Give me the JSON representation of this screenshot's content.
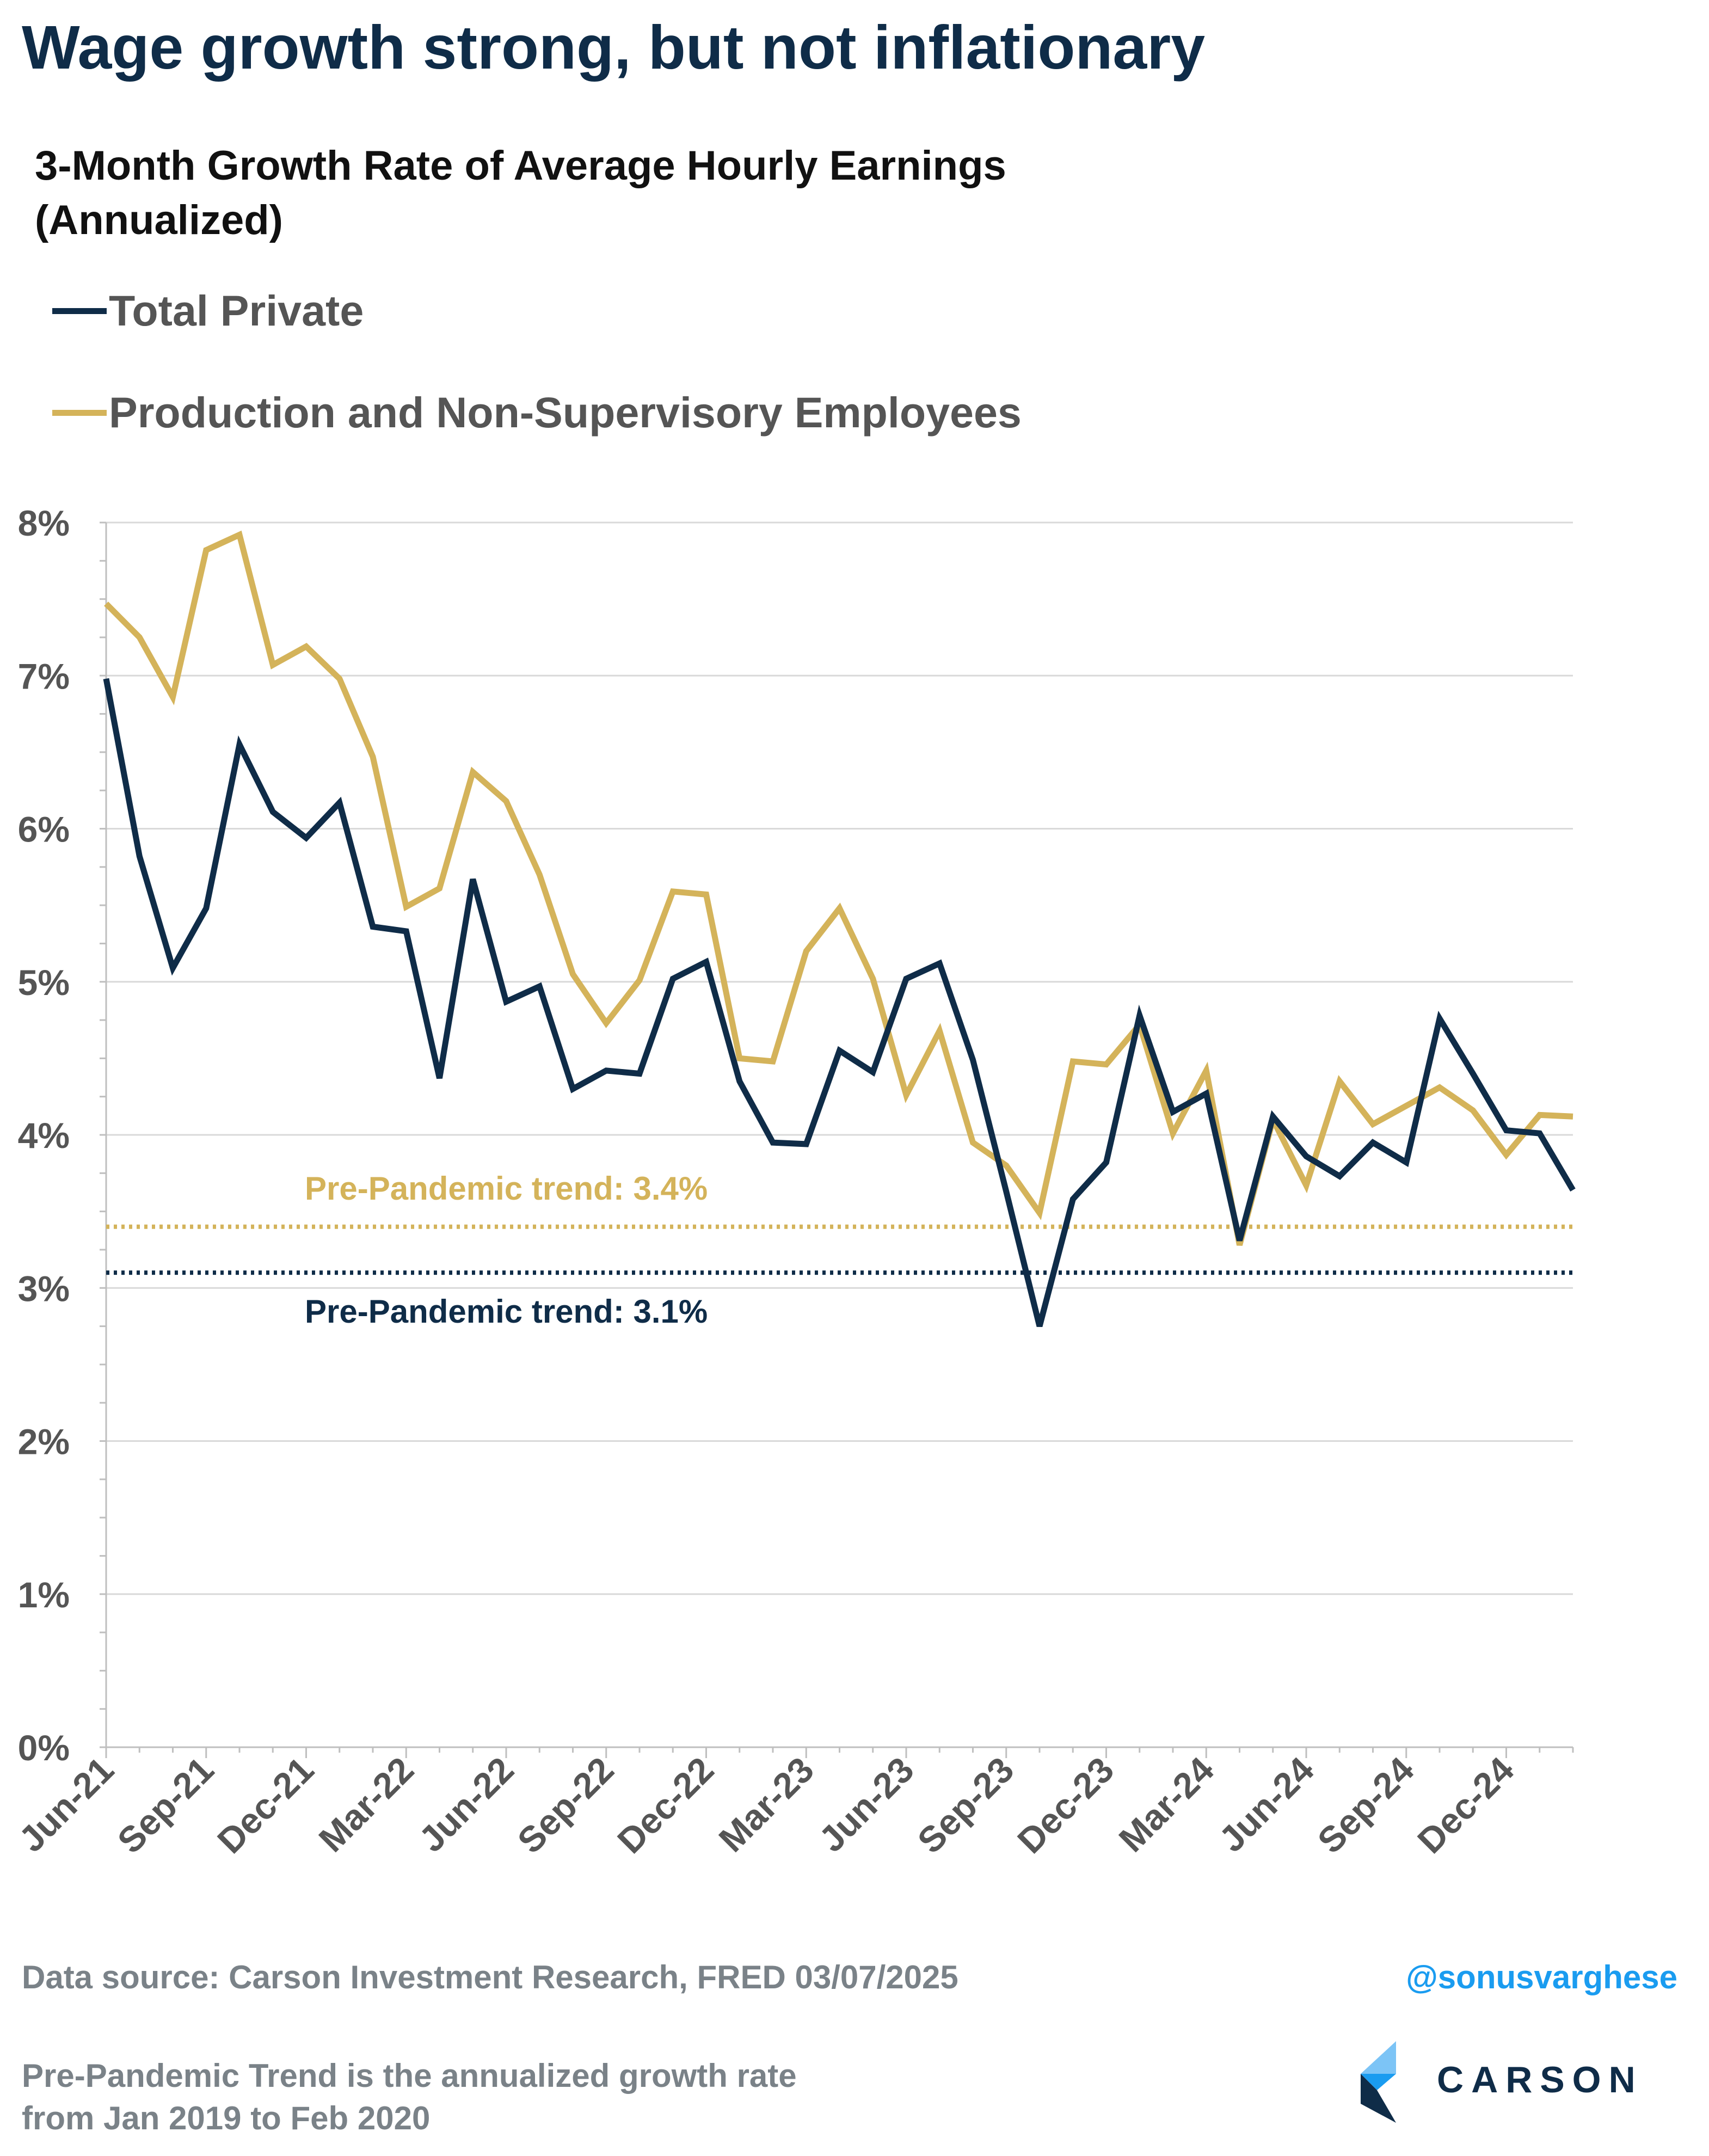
{
  "title": "Wage growth strong, but not inflationary",
  "chart_data": {
    "type": "line",
    "title": "3-Month Growth Rate of Average Hourly Earnings",
    "subtitle": "(Annualized)",
    "xlabel": "",
    "ylabel": "",
    "ylim": [
      0,
      8
    ],
    "yticks": [
      "0%",
      "1%",
      "2%",
      "3%",
      "4%",
      "5%",
      "6%",
      "7%",
      "8%"
    ],
    "xticks": [
      "Jun-21",
      "Sep-21",
      "Dec-21",
      "Mar-22",
      "Jun-22",
      "Sep-22",
      "Dec-22",
      "Mar-23",
      "Jun-23",
      "Sep-23",
      "Dec-23",
      "Mar-24",
      "Jun-24",
      "Sep-24",
      "Dec-24"
    ],
    "x": [
      "Jun-21",
      "Jul-21",
      "Aug-21",
      "Sep-21",
      "Oct-21",
      "Nov-21",
      "Dec-21",
      "Jan-22",
      "Feb-22",
      "Mar-22",
      "Apr-22",
      "May-22",
      "Jun-22",
      "Jul-22",
      "Aug-22",
      "Sep-22",
      "Oct-22",
      "Nov-22",
      "Dec-22",
      "Jan-23",
      "Feb-23",
      "Mar-23",
      "Apr-23",
      "May-23",
      "Jun-23",
      "Jul-23",
      "Aug-23",
      "Sep-23",
      "Oct-23",
      "Nov-23",
      "Dec-23",
      "Jan-24",
      "Feb-24",
      "Mar-24",
      "Apr-24",
      "May-24",
      "Jun-24",
      "Jul-24",
      "Aug-24",
      "Sep-24",
      "Oct-24",
      "Nov-24",
      "Dec-24",
      "Jan-25",
      "Feb-25"
    ],
    "grid": true,
    "legend_position": "top-left",
    "series": [
      {
        "name": "Total Private",
        "color": "#0f2c48",
        "values": [
          6.98,
          5.82,
          5.09,
          5.48,
          6.55,
          6.11,
          5.94,
          6.17,
          5.36,
          5.33,
          4.37,
          5.67,
          4.87,
          4.97,
          4.3,
          4.42,
          4.4,
          5.02,
          5.13,
          4.35,
          3.95,
          3.94,
          4.55,
          4.41,
          5.02,
          5.12,
          4.49,
          3.63,
          2.75,
          3.58,
          3.82,
          4.78,
          4.15,
          4.27,
          3.31,
          4.12,
          3.86,
          3.73,
          3.95,
          3.82,
          4.76,
          4.4,
          4.03,
          4.01,
          3.64
        ]
      },
      {
        "name": "Production and Non-Supervisory Employees",
        "color": "#d4b35a",
        "values": [
          7.47,
          7.25,
          6.86,
          7.82,
          7.92,
          7.07,
          7.19,
          6.98,
          6.47,
          5.49,
          5.61,
          6.37,
          6.18,
          5.7,
          5.05,
          4.73,
          5.01,
          5.59,
          5.57,
          4.5,
          4.48,
          5.2,
          5.48,
          5.02,
          4.26,
          4.68,
          3.95,
          3.8,
          3.49,
          4.48,
          4.46,
          4.72,
          4.01,
          4.42,
          3.28,
          4.1,
          3.67,
          4.35,
          4.07,
          4.19,
          4.31,
          4.16,
          3.87,
          4.13,
          4.12
        ]
      }
    ],
    "reference_lines": [
      {
        "label": "Pre-Pandemic trend: 3.4%",
        "value": 3.4,
        "color": "#d4b35a",
        "style": "dotted"
      },
      {
        "label": "Pre-Pandemic trend: 3.1%",
        "value": 3.1,
        "color": "#0f2c48",
        "style": "dotted"
      }
    ]
  },
  "footer": {
    "source": "Data source: Carson Investment Research, FRED   03/07/2025",
    "handle": "@sonusvarghese",
    "note_line1": "Pre-Pandemic Trend is the annualized growth rate",
    "note_line2": "from Jan 2019 to Feb 2020"
  },
  "brand": {
    "name": "CARSON",
    "colors": [
      "#0f2c48",
      "#1a9cf0",
      "#7cc4f6"
    ]
  }
}
